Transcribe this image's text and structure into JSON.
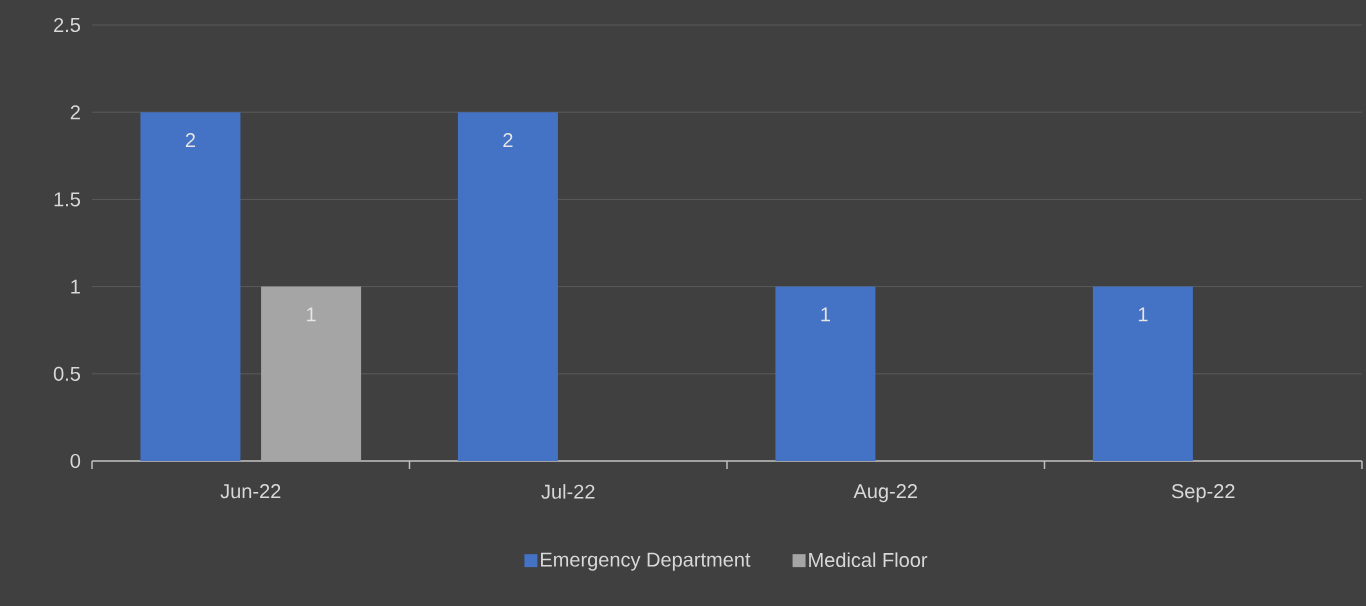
{
  "chart_data": {
    "type": "bar",
    "categories": [
      "Jun-22",
      "Jul-22",
      "Aug-22",
      "Sep-22"
    ],
    "series": [
      {
        "name": "Emergency Department",
        "color": "#4472c4",
        "values": [
          2,
          2,
          1,
          1
        ]
      },
      {
        "name": "Medical Floor",
        "color": "#a5a5a5",
        "values": [
          1,
          null,
          null,
          null
        ]
      }
    ],
    "ylim": [
      0,
      2.5
    ],
    "yticks": [
      0,
      0.5,
      1,
      1.5,
      2,
      2.5
    ],
    "grid": "y",
    "legend": "bottom",
    "data_labels": true
  }
}
